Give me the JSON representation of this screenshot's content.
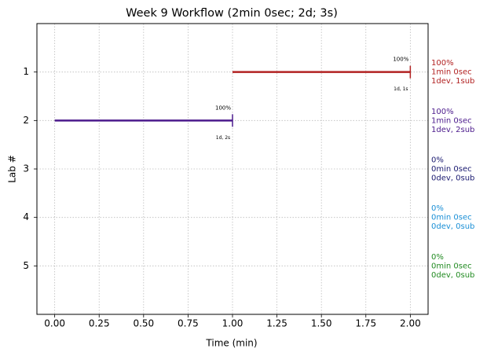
{
  "chart_data": {
    "type": "timeline",
    "title": "Week 9 Workflow (2min 0sec; 2d; 3s)",
    "x_label": "Time (min)",
    "y_label": "Lab #",
    "categories": [
      "1",
      "2",
      "3",
      "4",
      "5"
    ],
    "segments": [
      {
        "start": 1.0,
        "end": 2.0,
        "color": "#b22222",
        "top_label": "100%",
        "bottom_label": "1d, 1s"
      },
      {
        "start": 0.0,
        "end": 1.0,
        "color": "#4b1a8c",
        "top_label": "100%",
        "bottom_label": "1d, 2s"
      },
      null,
      null,
      null
    ],
    "side_labels": [
      {
        "color": "#b22222",
        "lines": [
          "100%",
          "1min 0sec",
          "1dev, 1sub"
        ]
      },
      {
        "color": "#4b1a8c",
        "lines": [
          "100%",
          "1min 0sec",
          "1dev, 2sub"
        ]
      },
      {
        "color": "#191970",
        "lines": [
          "0%",
          "0min 0sec",
          "0dev, 0sub"
        ]
      },
      {
        "color": "#1a8fd6",
        "lines": [
          "0%",
          "0min 0sec",
          "0dev, 0sub"
        ]
      },
      {
        "color": "#228b22",
        "lines": [
          "0%",
          "0min 0sec",
          "0dev, 0sub"
        ]
      }
    ],
    "xlim": [
      -0.1,
      2.1
    ],
    "xticks": [
      {
        "value": 0,
        "label": "0.00"
      },
      {
        "value": 0.25,
        "label": "0.25"
      },
      {
        "value": 0.5,
        "label": "0.50"
      },
      {
        "value": 0.75,
        "label": "0.75"
      },
      {
        "value": 1,
        "label": "1.00"
      },
      {
        "value": 1.25,
        "label": "1.25"
      },
      {
        "value": 1.5,
        "label": "1.50"
      },
      {
        "value": 1.75,
        "label": "1.75"
      },
      {
        "value": 2,
        "label": "2.00"
      }
    ],
    "grid": true
  }
}
